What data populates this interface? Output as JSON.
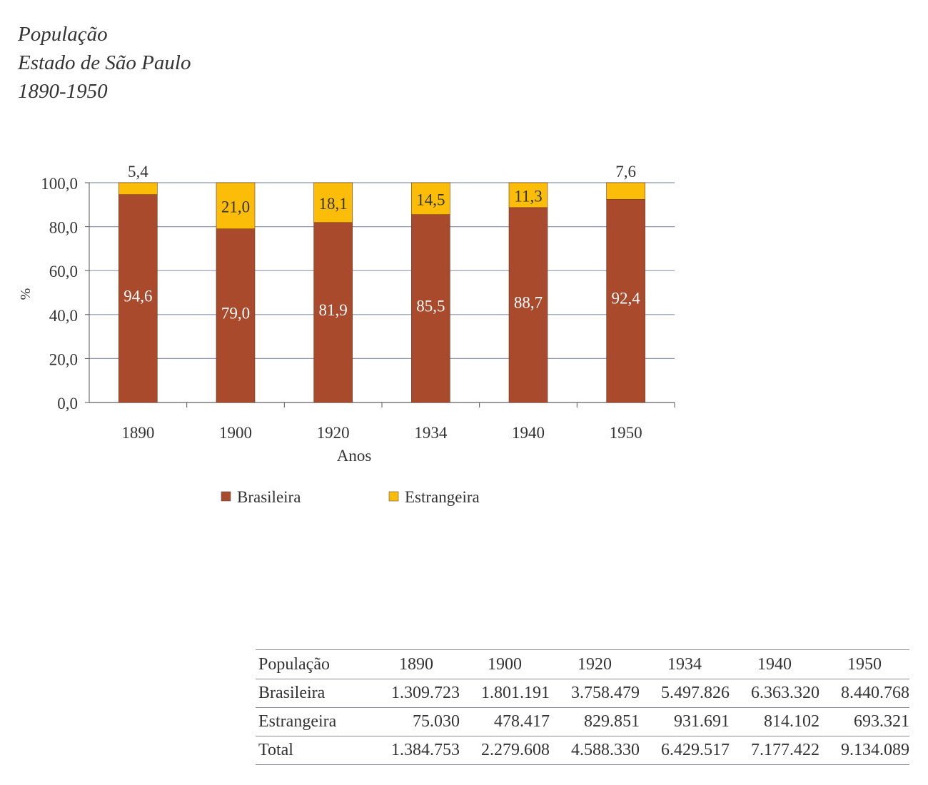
{
  "title": [
    "População",
    "Estado de São Paulo",
    "1890-1950"
  ],
  "chart_data": {
    "type": "bar",
    "stacked": true,
    "categories": [
      "1890",
      "1900",
      "1920",
      "1934",
      "1940",
      "1950"
    ],
    "series": [
      {
        "name": "Brasileira",
        "values": [
          94.6,
          79.0,
          81.9,
          85.5,
          88.7,
          92.4
        ],
        "labels": [
          "94,6",
          "79,0",
          "81,9",
          "85,5",
          "88,7",
          "92,4"
        ],
        "color": "#a94a2c"
      },
      {
        "name": "Estrangeira",
        "values": [
          5.4,
          21.0,
          18.1,
          14.5,
          11.3,
          7.6
        ],
        "labels": [
          "5,4",
          "21,0",
          "18,1",
          "14,5",
          "11,3",
          "7,6"
        ],
        "color": "#fbbd08"
      }
    ],
    "xlabel": "Anos",
    "ylabel": "%",
    "ylim": [
      0,
      100
    ],
    "yticks": [
      "0,0",
      "20,0",
      "40,0",
      "60,0",
      "80,0",
      "100,0"
    ],
    "grid": true,
    "legend": "bottom"
  },
  "table": {
    "header": [
      "População",
      "1890",
      "1900",
      "1920",
      "1934",
      "1940",
      "1950"
    ],
    "rows": [
      [
        "Brasileira",
        "1.309.723",
        "1.801.191",
        "3.758.479",
        "5.497.826",
        "6.363.320",
        "8.440.768"
      ],
      [
        "Estrangeira",
        "75.030",
        "478.417",
        "829.851",
        "931.691",
        "814.102",
        "693.321"
      ],
      [
        "Total",
        "1.384.753",
        "2.279.608",
        "4.588.330",
        "6.429.517",
        "7.177.422",
        "9.134.089"
      ]
    ]
  }
}
